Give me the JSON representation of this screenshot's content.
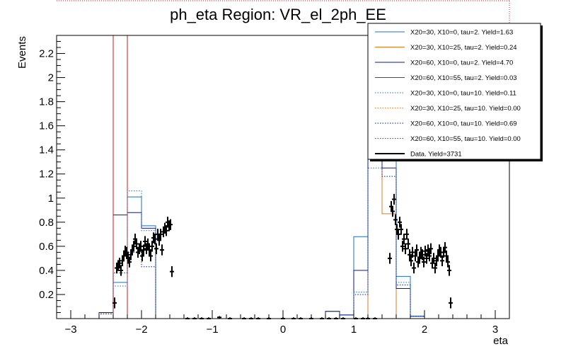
{
  "chart_data": {
    "type": "histogram",
    "title": "ph_eta Region: VR_el_2ph_EE",
    "xlabel": "eta",
    "ylabel": "Events",
    "xlim": [
      -3.2,
      3.2
    ],
    "ylim": [
      0,
      2.35
    ],
    "x_ticks": [
      "−3",
      "−2",
      "−1",
      "0",
      "1",
      "2",
      "3"
    ],
    "y_ticks": [
      "0.2",
      "0.4",
      "0.6",
      "0.8",
      "1",
      "1.2",
      "1.4",
      "1.6",
      "1.8",
      "2",
      "2.2"
    ],
    "bin_edges": [
      -3.0,
      -2.8,
      -2.6,
      -2.4,
      -2.2,
      -2.0,
      -1.8,
      -1.6,
      -1.4,
      -1.2,
      -1.0,
      -0.8,
      -0.6,
      -0.4,
      -0.2,
      0.0,
      0.2,
      0.4,
      0.6,
      0.8,
      1.0,
      1.2,
      1.4,
      1.6,
      1.8,
      2.0,
      2.2,
      2.4,
      2.6,
      2.8,
      3.0
    ],
    "legend_position": "top-right",
    "series": [
      {
        "name": "X20=30, X10=0, tau=2. Yield=1.63",
        "color": "#1f6fb5",
        "style": "solid",
        "values": [
          0,
          0,
          0.05,
          0.3,
          1.01,
          0.77,
          0,
          0,
          0,
          0,
          0,
          0,
          0,
          0,
          0,
          0,
          0,
          0,
          0.06,
          0.03,
          0.68,
          1.8,
          1.5,
          0.35,
          0.02,
          0,
          0,
          0,
          0,
          0
        ]
      },
      {
        "name": "X20=30, X10=25, tau=2. Yield=0.24",
        "color": "#e07a1f",
        "style": "solid",
        "values": [
          0,
          0,
          0,
          0,
          0,
          0,
          0,
          0,
          0,
          0,
          0,
          0,
          0,
          0,
          0,
          0,
          0,
          0,
          0,
          0,
          0,
          1.6,
          0.87,
          0,
          0,
          0,
          0,
          0,
          0,
          0
        ]
      },
      {
        "name": "X20=60, X10=0, tau=2. Yield=4.70",
        "color": "#0a1a8a",
        "style": "solid",
        "values": [
          0,
          0,
          0.05,
          0.86,
          0.88,
          0.75,
          0,
          0,
          0,
          0,
          0,
          0,
          0,
          0,
          0,
          0,
          0,
          0,
          0.06,
          0.03,
          0.4,
          1.55,
          1.25,
          0.25,
          0.02,
          0,
          0,
          0,
          0,
          0
        ]
      },
      {
        "name": "X20=60, X10=55, tau=2. Yield=0.03",
        "color": "#cc1414",
        "style": "solid",
        "values": [
          0,
          0,
          0,
          2.35,
          0,
          0,
          0,
          0,
          0,
          0,
          0,
          0,
          0,
          0,
          0,
          0,
          0,
          0,
          0,
          0,
          0,
          0,
          0,
          0,
          0,
          0,
          0,
          0,
          0,
          0
        ]
      },
      {
        "name": "X20=30, X10=0, tau=10. Yield=0.11",
        "color": "#1f6fb5",
        "style": "dotted",
        "values": [
          0,
          0,
          0.04,
          0.27,
          1.06,
          0.73,
          0,
          0,
          0,
          0,
          0,
          0,
          0,
          0,
          0,
          0,
          0,
          0,
          0,
          0,
          0.22,
          1.25,
          1.38,
          0.3,
          0.02,
          0,
          0,
          0,
          0,
          0
        ]
      },
      {
        "name": "X20=30, X10=25, tau=10. Yield=0.00",
        "color": "#e07a1f",
        "style": "dotted",
        "values": [
          0,
          0,
          0,
          0,
          0,
          0,
          0,
          0,
          0,
          0,
          0,
          0,
          0,
          0,
          0,
          0,
          0,
          0,
          0,
          0,
          0,
          0,
          0,
          0,
          0,
          0,
          0,
          0,
          0,
          0
        ]
      },
      {
        "name": "X20=60, X10=0, tau=10. Yield=0.69",
        "color": "#0a1a8a",
        "style": "dotted",
        "values": [
          0,
          0,
          0.04,
          0.38,
          0.55,
          0.43,
          0,
          0,
          0,
          0,
          0,
          0,
          0,
          0,
          0,
          0,
          0,
          0,
          0,
          0,
          0.2,
          1.35,
          1.18,
          0.28,
          0.02,
          0,
          0,
          0,
          0,
          0
        ]
      },
      {
        "name": "X20=60, X10=55, tau=10. Yield=0.00",
        "color": "#cc1414",
        "style": "dotted",
        "values": [
          0,
          0,
          0,
          0,
          0,
          0,
          0,
          0,
          0,
          0,
          0,
          0,
          0,
          0,
          0,
          0,
          0,
          0,
          0,
          0,
          0,
          0,
          0,
          0,
          0,
          0,
          0,
          0,
          0,
          0
        ]
      }
    ],
    "data_series": {
      "name": "Data. Yield=3731",
      "color": "#000000",
      "points": [
        [
          -2.38,
          0.13
        ],
        [
          -2.35,
          0.42
        ],
        [
          -2.33,
          0.44
        ],
        [
          -2.31,
          0.46
        ],
        [
          -2.29,
          0.4
        ],
        [
          -2.27,
          0.48
        ],
        [
          -2.25,
          0.52
        ],
        [
          -2.23,
          0.56
        ],
        [
          -2.21,
          0.55
        ],
        [
          -2.19,
          0.5
        ],
        [
          -2.17,
          0.47
        ],
        [
          -2.15,
          0.53
        ],
        [
          -2.13,
          0.57
        ],
        [
          -2.11,
          0.6
        ],
        [
          -2.09,
          0.66
        ],
        [
          -2.07,
          0.62
        ],
        [
          -2.05,
          0.55
        ],
        [
          -2.03,
          0.58
        ],
        [
          -2.01,
          0.6
        ],
        [
          -1.99,
          0.52
        ],
        [
          -1.97,
          0.57
        ],
        [
          -1.95,
          0.64
        ],
        [
          -1.93,
          0.58
        ],
        [
          -1.91,
          0.62
        ],
        [
          -1.89,
          0.57
        ],
        [
          -1.87,
          0.52
        ],
        [
          -1.85,
          0.6
        ],
        [
          -1.83,
          0.67
        ],
        [
          -1.81,
          0.66
        ],
        [
          -1.79,
          0.58
        ],
        [
          -1.77,
          0.7
        ],
        [
          -1.75,
          0.65
        ],
        [
          -1.73,
          0.7
        ],
        [
          -1.71,
          0.57
        ],
        [
          -1.69,
          0.72
        ],
        [
          -1.67,
          0.75
        ],
        [
          -1.65,
          0.73
        ],
        [
          -1.63,
          0.8
        ],
        [
          -1.61,
          0.77
        ],
        [
          -1.59,
          0.78
        ],
        [
          -1.57,
          0.39
        ],
        [
          -1.35,
          0.0
        ],
        [
          -1.25,
          0.0
        ],
        [
          -1.15,
          0.0
        ],
        [
          -1.05,
          0.0
        ],
        [
          -0.9,
          0.01
        ],
        [
          -0.75,
          0.0
        ],
        [
          -0.55,
          0.0
        ],
        [
          -0.45,
          0.0
        ],
        [
          -0.35,
          0.0
        ],
        [
          -0.2,
          0.0
        ],
        [
          0.0,
          0.0
        ],
        [
          0.15,
          0.0
        ],
        [
          0.25,
          0.0
        ],
        [
          0.4,
          0.0
        ],
        [
          0.55,
          0.0
        ],
        [
          0.65,
          0.0
        ],
        [
          0.75,
          0.0
        ],
        [
          0.85,
          0.0
        ],
        [
          1.03,
          0.0
        ],
        [
          1.13,
          0.0
        ],
        [
          1.2,
          0.0
        ],
        [
          1.3,
          0.0
        ],
        [
          1.51,
          0.5
        ],
        [
          1.53,
          0.93
        ],
        [
          1.55,
          0.89
        ],
        [
          1.57,
          0.99
        ],
        [
          1.59,
          0.82
        ],
        [
          1.61,
          0.74
        ],
        [
          1.63,
          0.7
        ],
        [
          1.65,
          0.8
        ],
        [
          1.67,
          0.74
        ],
        [
          1.69,
          0.6
        ],
        [
          1.71,
          0.66
        ],
        [
          1.73,
          0.58
        ],
        [
          1.75,
          0.7
        ],
        [
          1.77,
          0.62
        ],
        [
          1.79,
          0.53
        ],
        [
          1.81,
          0.48
        ],
        [
          1.83,
          0.55
        ],
        [
          1.85,
          0.42
        ],
        [
          1.87,
          0.52
        ],
        [
          1.89,
          0.57
        ],
        [
          1.91,
          0.47
        ],
        [
          1.93,
          0.5
        ],
        [
          1.95,
          0.55
        ],
        [
          1.97,
          0.53
        ],
        [
          1.99,
          0.47
        ],
        [
          2.01,
          0.56
        ],
        [
          2.03,
          0.5
        ],
        [
          2.05,
          0.57
        ],
        [
          2.07,
          0.52
        ],
        [
          2.09,
          0.58
        ],
        [
          2.11,
          0.46
        ],
        [
          2.13,
          0.5
        ],
        [
          2.15,
          0.42
        ],
        [
          2.17,
          0.48
        ],
        [
          2.19,
          0.52
        ],
        [
          2.21,
          0.57
        ],
        [
          2.23,
          0.55
        ],
        [
          2.25,
          0.48
        ],
        [
          2.27,
          0.55
        ],
        [
          2.29,
          0.59
        ],
        [
          2.31,
          0.52
        ],
        [
          2.33,
          0.47
        ],
        [
          2.35,
          0.4
        ],
        [
          2.37,
          0.13
        ]
      ]
    }
  }
}
